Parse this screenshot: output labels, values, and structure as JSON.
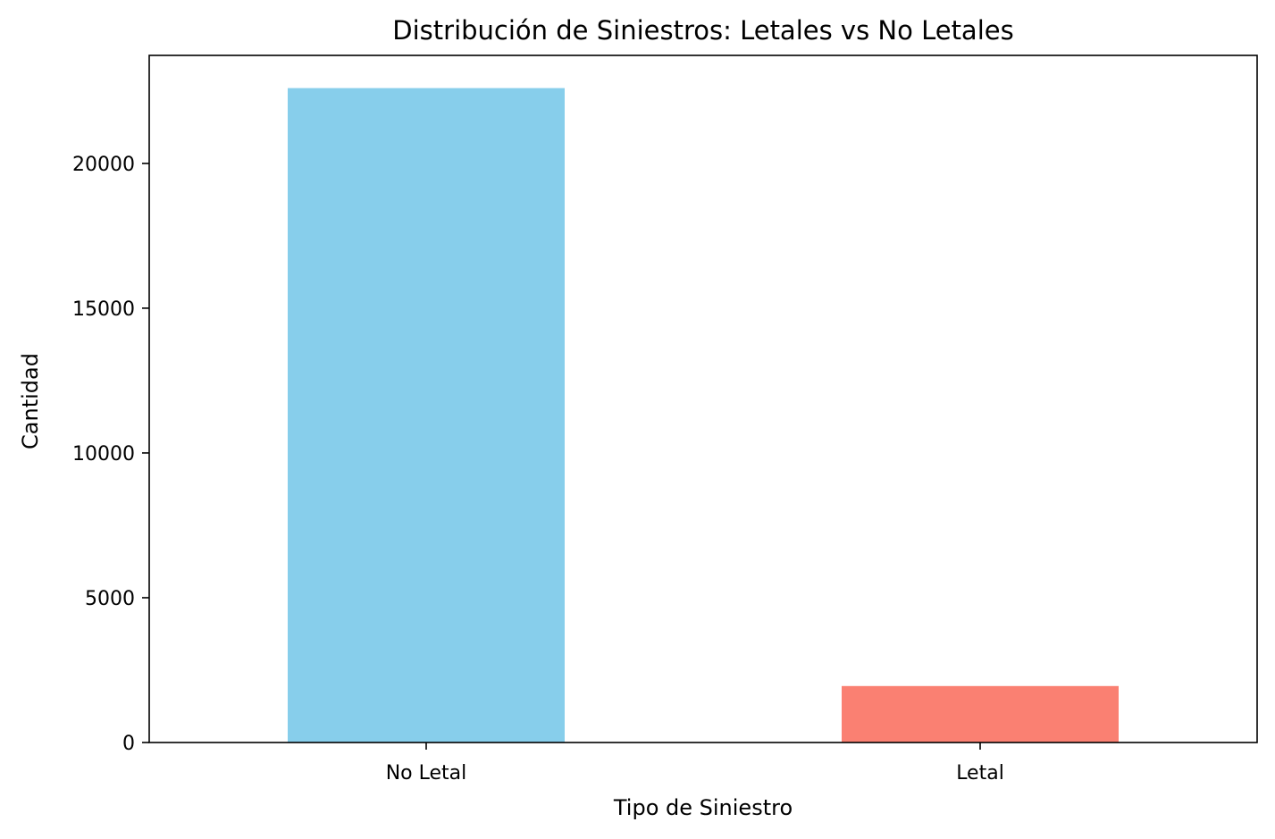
{
  "chart_data": {
    "type": "bar",
    "title": "Distribución de Siniestros: Letales vs No Letales",
    "xlabel": "Tipo de Siniestro",
    "ylabel": "Cantidad",
    "categories": [
      "No Letal",
      "Letal"
    ],
    "values": [
      22600,
      1950
    ],
    "colors": [
      "#87CEEB",
      "#FA8072"
    ],
    "yticks": [
      0,
      5000,
      10000,
      15000,
      20000
    ],
    "ylim": [
      0,
      23730
    ],
    "grid": false,
    "legend": "none"
  }
}
